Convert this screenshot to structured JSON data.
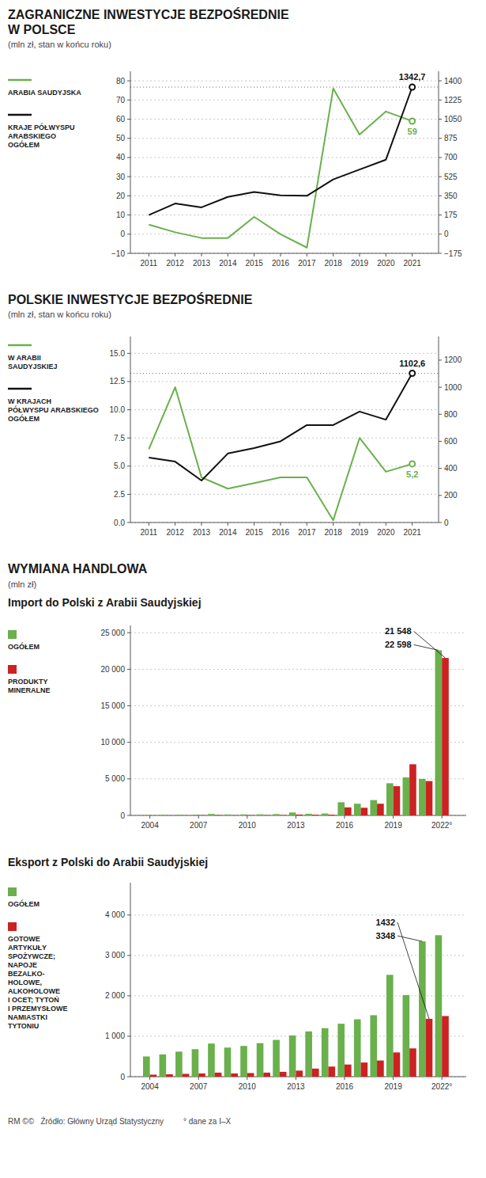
{
  "chart_data": [
    {
      "type": "line",
      "title": "ZAGRANICZNE INWESTYCJE BEZPOŚREDNIE\nW POLSCE",
      "subtitle": "(mln zł, stan w końcu roku)",
      "x": [
        2011,
        2012,
        2013,
        2014,
        2015,
        2016,
        2017,
        2018,
        2019,
        2020,
        2021
      ],
      "series": [
        {
          "name": "ARABIA SAUDYJSKA",
          "color": "#6ab04c",
          "values": [
            5,
            1,
            -2,
            -2,
            9,
            0,
            -7,
            76,
            52,
            64,
            59
          ],
          "value_labels": [
            null,
            null,
            null,
            null,
            null,
            null,
            null,
            null,
            null,
            null,
            "59"
          ]
        },
        {
          "name": "KRAJE PÓŁWYSPU\nARABSKIEGO\nOGÓŁEM",
          "color": "#111111",
          "axis": "y2",
          "values": [
            175,
            280,
            245,
            340,
            385,
            355,
            350,
            500,
            590,
            680,
            1342.7
          ],
          "value_labels": [
            null,
            null,
            null,
            null,
            null,
            null,
            null,
            null,
            null,
            null,
            "1342,7"
          ]
        }
      ],
      "xlim": [
        2010.3,
        2022.0
      ],
      "xticks": [
        2011,
        2012,
        2013,
        2014,
        2015,
        2016,
        2017,
        2018,
        2019,
        2020,
        2021
      ],
      "ylim": [
        -10,
        85
      ],
      "yticks": [
        {
          "value": -10,
          "label": "−10"
        },
        0,
        10,
        20,
        30,
        40,
        50,
        60,
        70,
        80
      ],
      "y2lim": [
        -175,
        1487.5
      ],
      "y2ticks": [
        {
          "value": -175,
          "label": "−175"
        },
        0,
        175,
        350,
        525,
        700,
        875,
        1050,
        1225,
        1400
      ],
      "grid": true,
      "legend": "left",
      "data_labels": true
    },
    {
      "type": "line",
      "title": "POLSKIE INWESTYCJE BEZPOŚREDNIE",
      "subtitle": "(mln zł, stan w końcu roku)",
      "x": [
        2011,
        2012,
        2013,
        2014,
        2015,
        2016,
        2017,
        2018,
        2019,
        2020,
        2021
      ],
      "series": [
        {
          "name": "W ARABII\nSAUDYJSKIEJ",
          "color": "#6ab04c",
          "values": [
            6.5,
            12.0,
            4.0,
            3.0,
            3.5,
            4.0,
            4.0,
            0.2,
            7.5,
            4.5,
            5.2
          ],
          "value_labels": [
            null,
            null,
            null,
            null,
            null,
            null,
            null,
            null,
            null,
            null,
            "5,2"
          ]
        },
        {
          "name": "W KRAJACH\nPÓŁWYSPU ARABSKIEGO\nOGÓŁEM",
          "color": "#111111",
          "axis": "y2",
          "values": [
            480,
            450,
            310,
            510,
            550,
            600,
            720,
            720,
            820,
            760,
            1102.6
          ],
          "value_labels": [
            null,
            null,
            null,
            null,
            null,
            null,
            null,
            null,
            null,
            null,
            "1102,6"
          ]
        }
      ],
      "xlim": [
        2010.3,
        2022.0
      ],
      "xticks": [
        2011,
        2012,
        2013,
        2014,
        2015,
        2016,
        2017,
        2018,
        2019,
        2020,
        2021
      ],
      "ylim": [
        0,
        16.5
      ],
      "yticks": [
        {
          "value": 0,
          "label": "0.0"
        },
        2.5,
        {
          "value": 5,
          "label": "5.0"
        },
        7.5,
        {
          "value": 10,
          "label": "10.0"
        },
        12.5,
        {
          "value": 15,
          "label": "15.0"
        }
      ],
      "y2lim": [
        0,
        1375
      ],
      "y2ticks": [
        0,
        200,
        400,
        600,
        800,
        1000,
        1200
      ],
      "grid": true,
      "legend": "left",
      "data_labels": true
    },
    {
      "type": "bar",
      "heading": "WYMIANA HANDLOWA",
      "subtitle": "(mln zł)",
      "title": "Import do Polski z Arabii Saudyjskiej",
      "x": [
        2004,
        2005,
        2006,
        2007,
        2008,
        2009,
        2010,
        2011,
        2012,
        2013,
        2014,
        2015,
        2016,
        2017,
        2018,
        2019,
        2020,
        2021,
        2022
      ],
      "series": [
        {
          "name": "OGÓŁEM",
          "color": "#6ab04c",
          "values": [
            50,
            70,
            90,
            110,
            200,
            130,
            140,
            150,
            180,
            400,
            220,
            260,
            1800,
            1600,
            2100,
            4400,
            5200,
            5000,
            22598
          ],
          "value_labels": [
            null,
            null,
            null,
            null,
            null,
            null,
            null,
            null,
            null,
            null,
            null,
            null,
            null,
            null,
            null,
            null,
            null,
            null,
            "22 598"
          ]
        },
        {
          "name": "PRODUKTY\nMINERALNE",
          "color": "#cc2222",
          "values": [
            10,
            15,
            20,
            30,
            50,
            25,
            30,
            35,
            45,
            120,
            90,
            100,
            1100,
            1050,
            1600,
            4000,
            7000,
            4700,
            21548
          ],
          "value_labels": [
            null,
            null,
            null,
            null,
            null,
            null,
            null,
            null,
            null,
            null,
            null,
            null,
            null,
            null,
            null,
            null,
            null,
            null,
            "21 548"
          ]
        }
      ],
      "xlim": [
        2002.8,
        2023.5
      ],
      "xticks": [
        2004,
        2007,
        2010,
        2013,
        2016,
        2019,
        {
          "value": 2022,
          "label": "2022°"
        }
      ],
      "ylim": [
        0,
        26000
      ],
      "yticks": [
        0,
        {
          "value": 5000,
          "label": "5 000"
        },
        {
          "value": 10000,
          "label": "10 000"
        },
        {
          "value": 15000,
          "label": "15 000"
        },
        {
          "value": 20000,
          "label": "20 000"
        },
        {
          "value": 25000,
          "label": "25 000"
        }
      ],
      "grid": true,
      "legend": "left",
      "data_labels": true
    },
    {
      "type": "bar",
      "title": "Eksport z Polski do Arabii Saudyjskiej",
      "x": [
        2004,
        2005,
        2006,
        2007,
        2008,
        2009,
        2010,
        2011,
        2012,
        2013,
        2014,
        2015,
        2016,
        2017,
        2018,
        2019,
        2020,
        2021,
        2022
      ],
      "series": [
        {
          "name": "OGÓŁEM",
          "color": "#6ab04c",
          "values": [
            500,
            550,
            620,
            680,
            820,
            720,
            760,
            830,
            910,
            1020,
            1120,
            1200,
            1310,
            1420,
            1520,
            2520,
            2020,
            3348,
            3500
          ],
          "value_labels": [
            null,
            null,
            null,
            null,
            null,
            null,
            null,
            null,
            null,
            null,
            null,
            null,
            null,
            null,
            null,
            null,
            null,
            "3348",
            null
          ]
        },
        {
          "name": "GOTOWE\nARTYKUŁY\nSPOŻYWCZE;\nNAPOJE\nBEZALKO-\nHOLOWE,\nALKOHOLOWE\nI OCET; TYTOŃ\nI PRZEMYSŁOWE\nNAMIASTKI\nTYTONIU",
          "color": "#cc2222",
          "values": [
            50,
            60,
            70,
            80,
            100,
            80,
            90,
            100,
            120,
            150,
            200,
            250,
            300,
            350,
            400,
            600,
            700,
            1432,
            1500
          ],
          "value_labels": [
            null,
            null,
            null,
            null,
            null,
            null,
            null,
            null,
            null,
            null,
            null,
            null,
            null,
            null,
            null,
            null,
            null,
            "1432",
            null
          ]
        }
      ],
      "xlim": [
        2002.8,
        2023.5
      ],
      "xticks": [
        2004,
        2007,
        2010,
        2013,
        2016,
        2019,
        {
          "value": 2022,
          "label": "2022°"
        }
      ],
      "ylim": [
        0,
        4800
      ],
      "yticks": [
        0,
        {
          "value": 1000,
          "label": "1 000"
        },
        {
          "value": 2000,
          "label": "2 000"
        },
        {
          "value": 3000,
          "label": "3 000"
        },
        {
          "value": 4000,
          "label": "4 000"
        }
      ],
      "grid": true,
      "legend": "left",
      "data_labels": true
    }
  ],
  "footer": "RM ©©   Źródło: Główny Urząd Statystyczny         ° dane za I–X"
}
